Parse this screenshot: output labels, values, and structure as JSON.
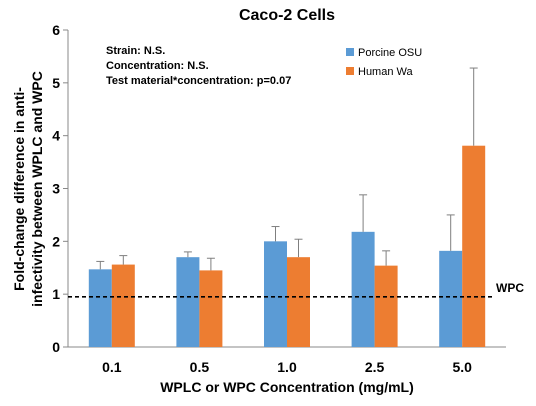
{
  "chart_data": {
    "type": "bar",
    "title": "Caco-2 Cells",
    "xlabel": "WPLC or WPC Concentration (mg/mL)",
    "ylabel_lines": [
      "Fold-change difference in anti-",
      "infectivity between WPLC and WPC"
    ],
    "categories": [
      "0.1",
      "0.5",
      "1.0",
      "2.5",
      "5.0"
    ],
    "ylim": [
      0,
      6
    ],
    "yticks": [
      0,
      1,
      2,
      3,
      4,
      5,
      6
    ],
    "series": [
      {
        "name": "Porcine OSU",
        "color": "#5B9BD5",
        "values": [
          1.47,
          1.7,
          2.0,
          2.18,
          1.82
        ],
        "error": [
          0.15,
          0.1,
          0.28,
          0.7,
          0.68
        ]
      },
      {
        "name": "Human Wa",
        "color": "#ED7D31",
        "values": [
          1.56,
          1.45,
          1.7,
          1.54,
          3.81
        ],
        "error": [
          0.17,
          0.23,
          0.34,
          0.28,
          1.47
        ]
      }
    ],
    "reference_line": {
      "label": "WPC",
      "value": 0.95,
      "style": "dashed"
    },
    "annotations": [
      "Strain: N.S.",
      "Concentration: N.S.",
      "Test material*concentration: p=0.07"
    ],
    "legend_position": "top-right",
    "grid": false
  }
}
